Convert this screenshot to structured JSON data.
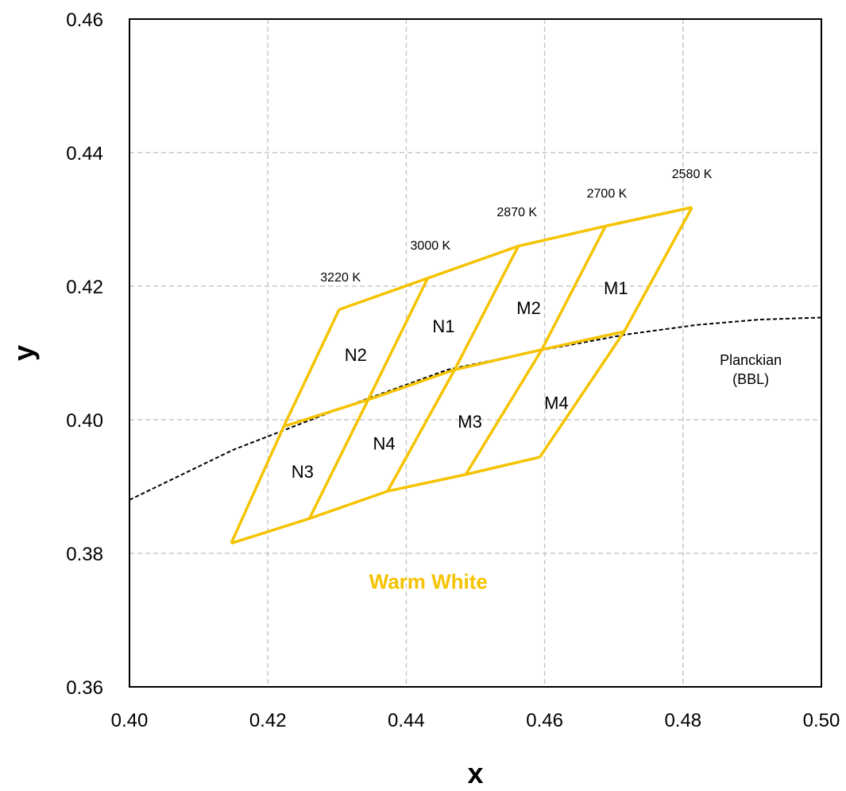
{
  "chart_data": {
    "type": "line",
    "xlabel": "x",
    "ylabel": "y",
    "xlim": [
      0.4,
      0.5
    ],
    "ylim": [
      0.36,
      0.46
    ],
    "x_ticks": [
      "0.40",
      "0.42",
      "0.44",
      "0.46",
      "0.48",
      "0.50"
    ],
    "y_ticks": [
      "0.36",
      "0.38",
      "0.40",
      "0.42",
      "0.44",
      "0.46"
    ],
    "grid": true,
    "bin_color": "#F5C300",
    "region_label": "Warm White",
    "planckian": {
      "label_line1": "Planckian",
      "label_line2": "(BBL)",
      "x": [
        0.4,
        0.415,
        0.43,
        0.446,
        0.46,
        0.472,
        0.482,
        0.491,
        0.5
      ],
      "y": [
        0.388,
        0.3955,
        0.4015,
        0.4075,
        0.4105,
        0.4128,
        0.4142,
        0.415,
        0.4153
      ]
    },
    "bin_lines": [
      {
        "x": [
          0.4303,
          0.4431,
          0.4562,
          0.4688,
          0.4813
        ],
        "y": [
          0.4165,
          0.4212,
          0.426,
          0.429,
          0.4318
        ]
      },
      {
        "x": [
          0.4223,
          0.4345,
          0.447,
          0.4596,
          0.4715
        ],
        "y": [
          0.399,
          0.403,
          0.4075,
          0.4105,
          0.4132
        ]
      },
      {
        "x": [
          0.4147,
          0.426,
          0.4373,
          0.4486,
          0.4593
        ],
        "y": [
          0.3815,
          0.3852,
          0.3893,
          0.3918,
          0.3944
        ]
      },
      {
        "x": [
          0.4303,
          0.4223,
          0.4147
        ],
        "y": [
          0.4165,
          0.399,
          0.3815
        ]
      },
      {
        "x": [
          0.4431,
          0.4345,
          0.426
        ],
        "y": [
          0.4212,
          0.403,
          0.3852
        ]
      },
      {
        "x": [
          0.4562,
          0.447,
          0.4373
        ],
        "y": [
          0.426,
          0.4075,
          0.3893
        ]
      },
      {
        "x": [
          0.4688,
          0.4596,
          0.4486
        ],
        "y": [
          0.429,
          0.4105,
          0.3918
        ]
      },
      {
        "x": [
          0.4813,
          0.4715,
          0.4593
        ],
        "y": [
          0.4318,
          0.4132,
          0.3944
        ]
      }
    ],
    "cct_labels": [
      {
        "text": "3220 K",
        "x": 0.4305,
        "y": 0.4207
      },
      {
        "text": "3000 K",
        "x": 0.4435,
        "y": 0.4255
      },
      {
        "text": "2870 K",
        "x": 0.456,
        "y": 0.4305
      },
      {
        "text": "2700 K",
        "x": 0.469,
        "y": 0.4333
      },
      {
        "text": "2580 K",
        "x": 0.4813,
        "y": 0.4362
      }
    ],
    "bin_labels": [
      {
        "text": "N2",
        "x": 0.4327,
        "y": 0.4095
      },
      {
        "text": "N1",
        "x": 0.4454,
        "y": 0.4138
      },
      {
        "text": "M2",
        "x": 0.4577,
        "y": 0.4165
      },
      {
        "text": "M1",
        "x": 0.4703,
        "y": 0.4195
      },
      {
        "text": "N3",
        "x": 0.425,
        "y": 0.392
      },
      {
        "text": "N4",
        "x": 0.4368,
        "y": 0.3962
      },
      {
        "text": "M3",
        "x": 0.4492,
        "y": 0.3995
      },
      {
        "text": "M4",
        "x": 0.4617,
        "y": 0.4023
      }
    ],
    "region_label_pos": {
      "x": 0.4432,
      "y": 0.3755
    },
    "planckian_label_pos": {
      "x": 0.4898,
      "y": 0.403
    }
  }
}
